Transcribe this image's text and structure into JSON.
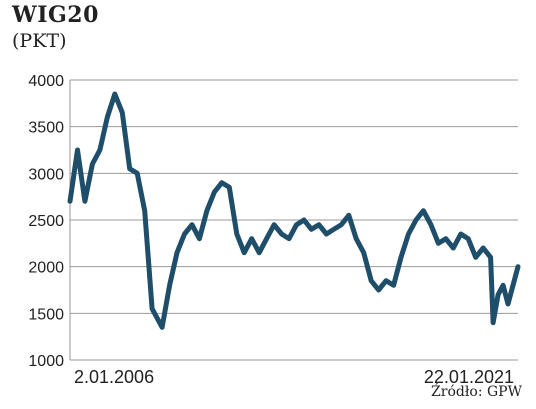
{
  "chart_data": {
    "type": "line",
    "title": "WIG20",
    "subtitle": "(PKT)",
    "source": "Źródło: GPW",
    "x_start_label": "2.01.2006",
    "x_end_label": "22.01.2021",
    "ylim": [
      1000,
      4000
    ],
    "yticks": [
      1000,
      1500,
      2000,
      2500,
      3000,
      3500,
      4000
    ],
    "grid": true,
    "line_color": "#1f4e6b",
    "series": [
      {
        "x": [
          "2006-01",
          "2006-04",
          "2006-07",
          "2006-10",
          "2007-01",
          "2007-04",
          "2007-07",
          "2007-10",
          "2008-01",
          "2008-04",
          "2008-07",
          "2008-10",
          "2009-02",
          "2009-05",
          "2009-08",
          "2009-11",
          "2010-02",
          "2010-05",
          "2010-08",
          "2010-11",
          "2011-02",
          "2011-05",
          "2011-08",
          "2011-11",
          "2012-02",
          "2012-05",
          "2012-08",
          "2012-11",
          "2013-02",
          "2013-05",
          "2013-08",
          "2013-11",
          "2014-02",
          "2014-05",
          "2014-08",
          "2014-11",
          "2015-02",
          "2015-05",
          "2015-08",
          "2015-11",
          "2016-02",
          "2016-05",
          "2016-08",
          "2016-11",
          "2017-02",
          "2017-05",
          "2017-08",
          "2017-11",
          "2018-02",
          "2018-05",
          "2018-08",
          "2018-11",
          "2019-02",
          "2019-05",
          "2019-08",
          "2019-11",
          "2020-02",
          "2020-03",
          "2020-05",
          "2020-07",
          "2020-09",
          "2020-11",
          "2021-01"
        ],
        "y": [
          2700,
          3250,
          2700,
          3100,
          3250,
          3600,
          3850,
          3650,
          3050,
          3000,
          2600,
          1550,
          1350,
          1800,
          2150,
          2350,
          2450,
          2300,
          2600,
          2800,
          2900,
          2850,
          2350,
          2150,
          2300,
          2150,
          2300,
          2450,
          2350,
          2300,
          2450,
          2500,
          2400,
          2450,
          2350,
          2400,
          2450,
          2550,
          2300,
          2150,
          1850,
          1750,
          1850,
          1800,
          2100,
          2350,
          2500,
          2600,
          2450,
          2250,
          2300,
          2200,
          2350,
          2300,
          2100,
          2200,
          2100,
          1400,
          1700,
          1800,
          1600,
          1800,
          2000
        ]
      }
    ]
  }
}
